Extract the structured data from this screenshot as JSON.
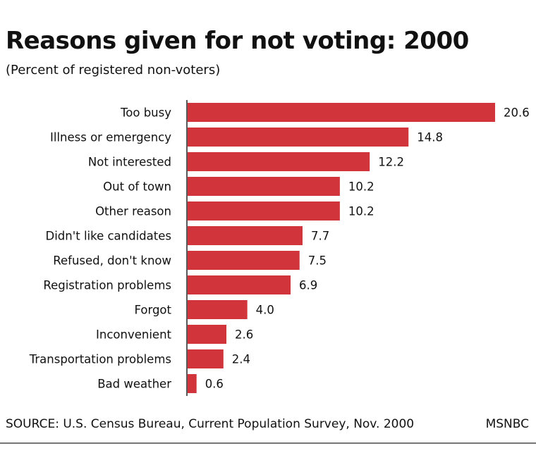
{
  "chart_data": {
    "type": "bar",
    "orientation": "horizontal",
    "title": "Reasons given for not voting: 2000",
    "subtitle": "(Percent of registered non-voters)",
    "categories": [
      "Too busy",
      "Illness or emergency",
      "Not interested",
      "Out of town",
      "Other reason",
      "Didn't like candidates",
      "Refused, don't know",
      "Registration problems",
      "Forgot",
      "Inconvenient",
      "Transportation problems",
      "Bad weather"
    ],
    "values": [
      20.6,
      14.8,
      12.2,
      10.2,
      10.2,
      7.7,
      7.5,
      6.9,
      4.0,
      2.6,
      2.4,
      0.6
    ],
    "value_labels": [
      "20.6",
      "14.8",
      "12.2",
      "10.2",
      "10.2",
      "7.7",
      "7.5",
      "6.9",
      "4.0",
      "2.6",
      "2.4",
      "0.6"
    ],
    "xlim": [
      0,
      20.6
    ],
    "grid": false,
    "legend": "none",
    "bar_color": "#d1343a"
  },
  "footer": {
    "source": "SOURCE: U.S. Census Bureau, Current Population Survey, Nov. 2000",
    "brand": "MSNBC"
  }
}
